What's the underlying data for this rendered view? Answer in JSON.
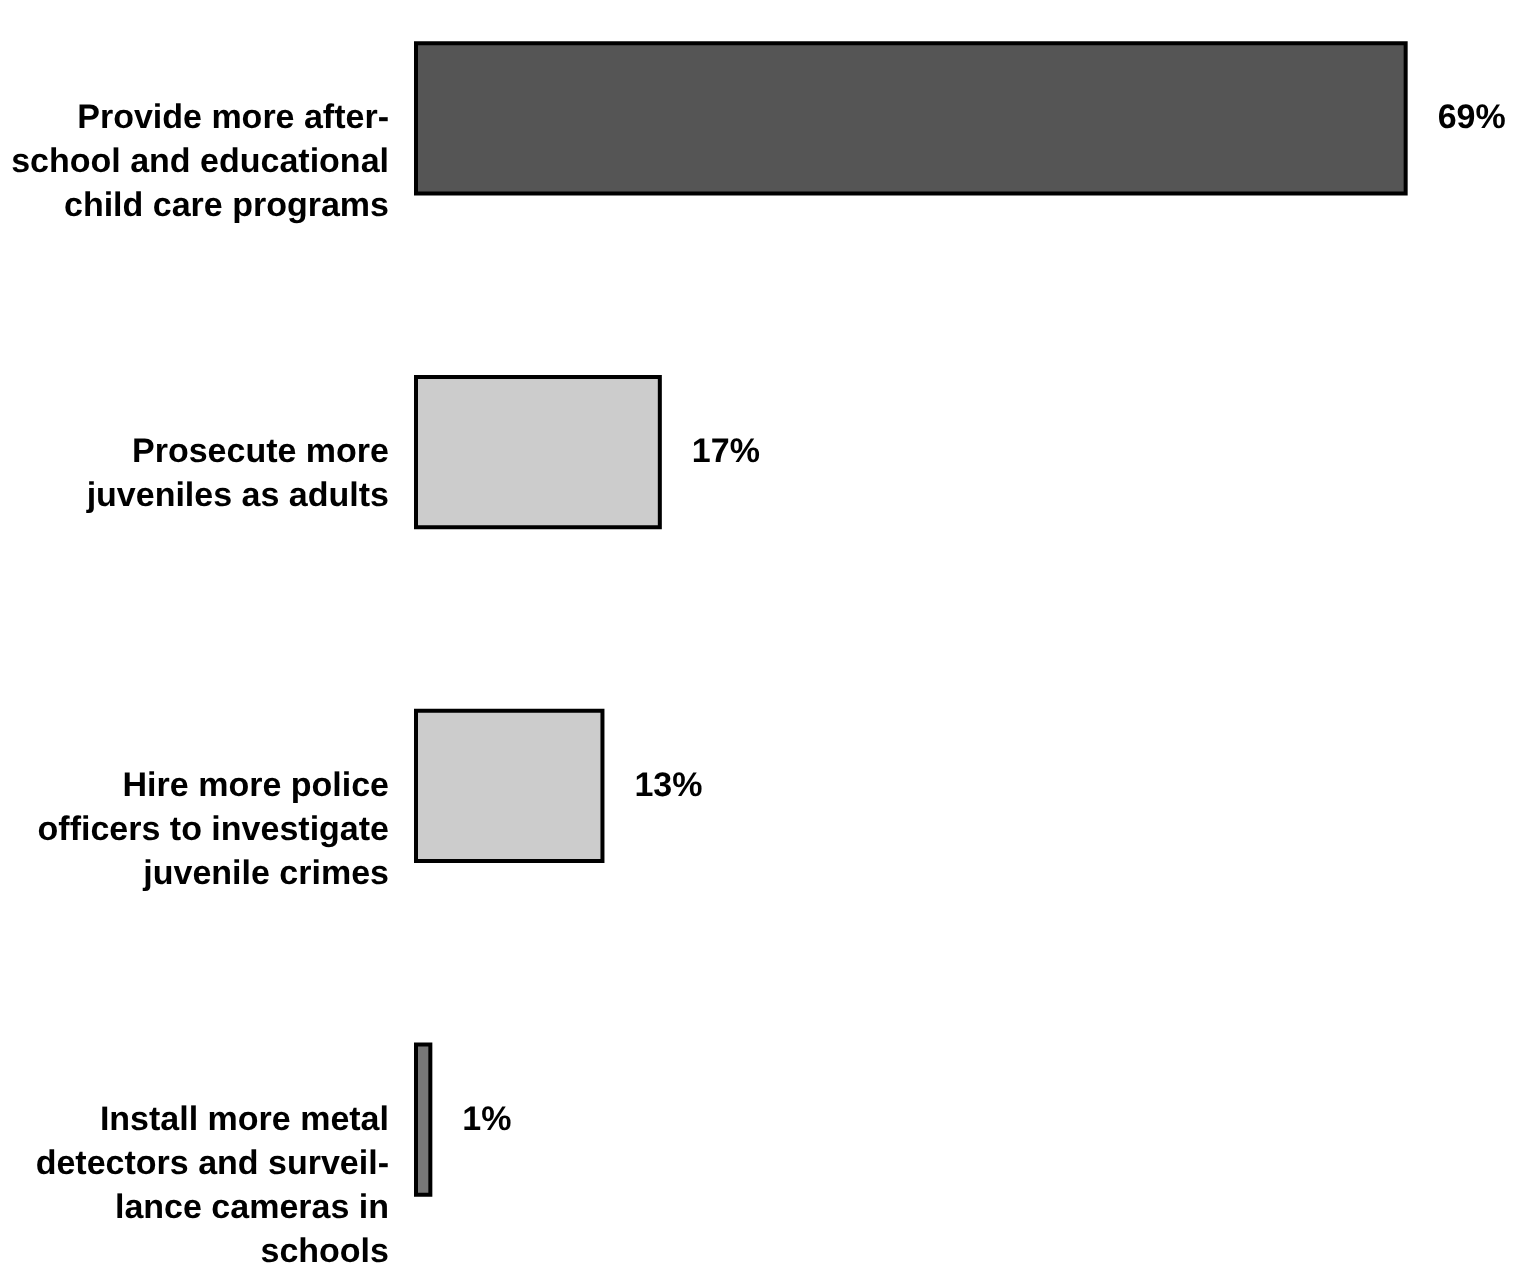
{
  "chart_data": {
    "type": "bar",
    "orientation": "horizontal",
    "categories": [
      "Provide more after-\nschool and educational\nchild care programs",
      "Prosecute more\njuveniles as adults",
      "Hire more police\nofficers to investigate\njuvenile crimes",
      "Install more metal\ndetectors and surveil-\nlance cameras in\nschools"
    ],
    "values": [
      69,
      17,
      13,
      1
    ],
    "colors": [
      "#555555",
      "#cccccc",
      "#cccccc",
      "#777777"
    ],
    "value_labels": [
      "69%",
      "17%",
      "13%",
      "1%"
    ]
  }
}
